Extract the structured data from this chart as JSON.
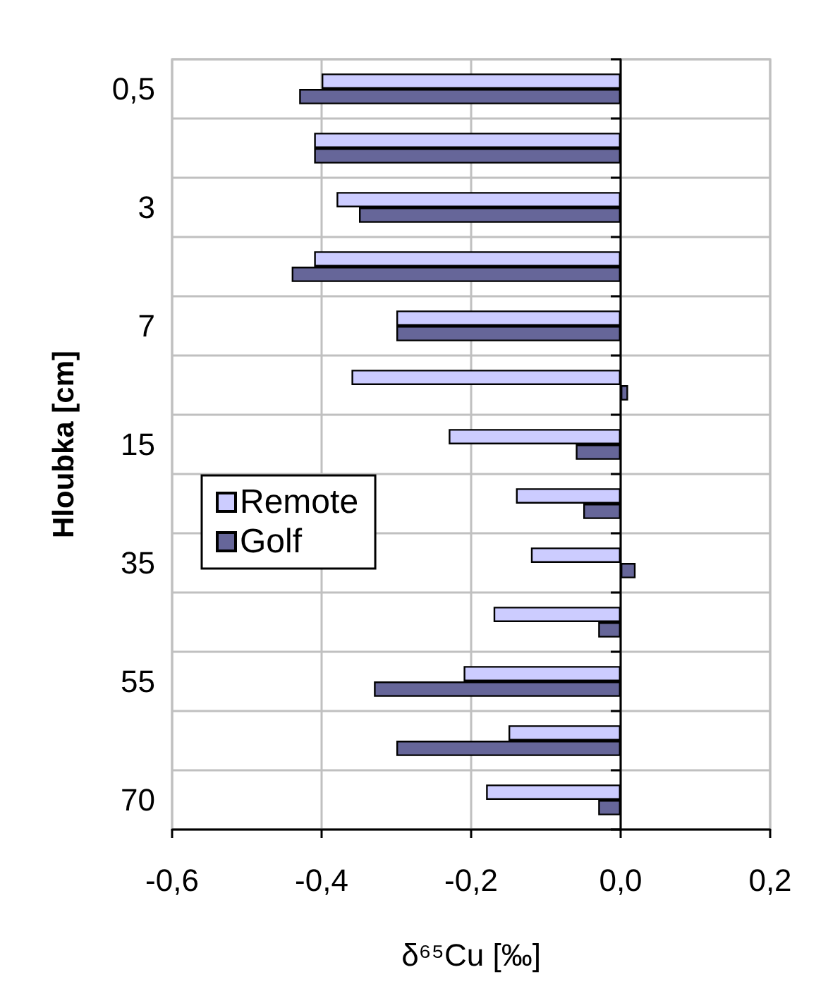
{
  "chart_data": {
    "type": "bar",
    "orientation": "horizontal",
    "categories": [
      "0,5",
      null,
      "3",
      null,
      "7",
      null,
      "15",
      null,
      "35",
      null,
      "55",
      null,
      "70"
    ],
    "series": [
      {
        "name": "Remote",
        "color": "#ccccff",
        "values": [
          -0.4,
          -0.41,
          -0.38,
          -0.41,
          -0.3,
          -0.36,
          -0.23,
          -0.14,
          -0.12,
          -0.17,
          -0.21,
          -0.15,
          -0.18
        ]
      },
      {
        "name": "Golf",
        "color": "#666699",
        "values": [
          -0.43,
          -0.41,
          -0.35,
          -0.44,
          -0.3,
          0.01,
          -0.06,
          -0.05,
          0.02,
          -0.03,
          -0.33,
          -0.3,
          -0.03
        ]
      }
    ],
    "xlabel": "δ⁶⁵Cu [‰]",
    "ylabel": "Hloubka [cm]",
    "xlim": [
      -0.6,
      0.2
    ],
    "xticks": [
      {
        "value": -0.6,
        "label": "-0,6"
      },
      {
        "value": -0.4,
        "label": "-0,4"
      },
      {
        "value": -0.2,
        "label": "-0,2"
      },
      {
        "value": 0,
        "label": "0,0"
      },
      {
        "value": 0.2,
        "label": "0,2"
      }
    ],
    "grid": true,
    "legend": "left"
  }
}
